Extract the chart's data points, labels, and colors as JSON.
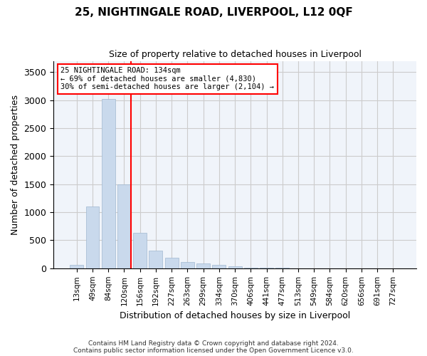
{
  "title": "25, NIGHTINGALE ROAD, LIVERPOOL, L12 0QF",
  "subtitle": "Size of property relative to detached houses in Liverpool",
  "xlabel": "Distribution of detached houses by size in Liverpool",
  "ylabel": "Number of detached properties",
  "categories": [
    "13sqm",
    "49sqm",
    "84sqm",
    "120sqm",
    "156sqm",
    "192sqm",
    "227sqm",
    "263sqm",
    "299sqm",
    "334sqm",
    "370sqm",
    "406sqm",
    "441sqm",
    "477sqm",
    "513sqm",
    "549sqm",
    "584sqm",
    "620sqm",
    "656sqm",
    "691sqm",
    "727sqm"
  ],
  "values": [
    60,
    1100,
    3020,
    1500,
    630,
    320,
    190,
    110,
    90,
    55,
    30,
    15,
    8,
    5,
    3,
    2,
    1,
    1,
    0,
    0,
    0
  ],
  "bar_color": "#c9d9ec",
  "bar_edge_color": "#a0b8d0",
  "red_line_index": 3,
  "red_line_label": "25 NIGHTINGALE ROAD: 134sqm",
  "annotation_line1": "25 NIGHTINGALE ROAD: 134sqm",
  "annotation_line2": "← 69% of detached houses are smaller (4,830)",
  "annotation_line3": "30% of semi-detached houses are larger (2,104) →",
  "ylim": [
    0,
    3700
  ],
  "yticks": [
    0,
    500,
    1000,
    1500,
    2000,
    2500,
    3000,
    3500
  ],
  "grid_color": "#cccccc",
  "background_color": "#f0f4fa",
  "footer_line1": "Contains HM Land Registry data © Crown copyright and database right 2024.",
  "footer_line2": "Contains public sector information licensed under the Open Government Licence v3.0."
}
